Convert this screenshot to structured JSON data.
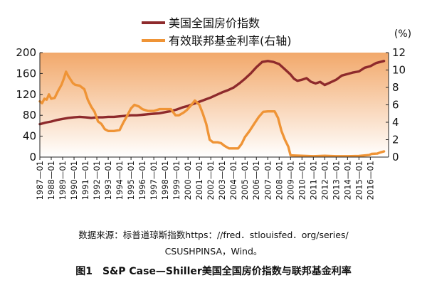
{
  "caption": "图1　S&P Case—Shiller美国全国房价指数与联邦基金利率",
  "source": {
    "line1": "数据来源：标普道琼斯指数https：//fred．stlouisfed．org/series/",
    "line2": "CSUSHPINSA，Wind。"
  },
  "colors": {
    "index": "#8e2a2c",
    "rate": "#ef9436",
    "fill_top": "#f2a86a",
    "fill_bottom": "#ffffff"
  },
  "chart_data": {
    "type": "line",
    "left_axis": {
      "ticks": [
        "0",
        "40",
        "80",
        "120",
        "160",
        "200"
      ],
      "range": [
        0,
        200
      ]
    },
    "right_axis": {
      "unit": "(%)",
      "ticks": [
        "0",
        "2",
        "4",
        "6",
        "8",
        "10",
        "12"
      ],
      "range": [
        0,
        12
      ]
    },
    "x_range": [
      1987.0,
      2017.6
    ],
    "x_ticks": [
      "1987—01",
      "1988—01",
      "1989—01",
      "1990—01",
      "1991—01",
      "1992—01",
      "1993—01",
      "1994—01",
      "1995—01",
      "1996—01",
      "1997—01",
      "1998—01",
      "1999—01",
      "2000—01",
      "2001—01",
      "2002—01",
      "2003—01",
      "2004—01",
      "2005—01",
      "2006—01",
      "2007—01",
      "2008—01",
      "2009—01",
      "2010—01",
      "2011—01",
      "2012—01",
      "2013—01",
      "2014—01",
      "2015—01",
      "2016—01"
    ],
    "grid": false,
    "legend": "top-center",
    "series": [
      {
        "name": "美国全国房价指数",
        "axis": "left",
        "points": [
          [
            1987.0,
            63
          ],
          [
            1987.5,
            66
          ],
          [
            1988.0,
            68
          ],
          [
            1988.5,
            71
          ],
          [
            1989.0,
            73
          ],
          [
            1989.5,
            75
          ],
          [
            1990.0,
            76
          ],
          [
            1990.5,
            77
          ],
          [
            1991.0,
            76
          ],
          [
            1991.5,
            75
          ],
          [
            1992.0,
            76
          ],
          [
            1992.5,
            76
          ],
          [
            1993.0,
            77
          ],
          [
            1993.5,
            77
          ],
          [
            1994.0,
            78
          ],
          [
            1994.5,
            79
          ],
          [
            1995.0,
            80
          ],
          [
            1995.5,
            80
          ],
          [
            1996.0,
            81
          ],
          [
            1996.5,
            82
          ],
          [
            1997.0,
            83
          ],
          [
            1997.5,
            84
          ],
          [
            1998.0,
            86
          ],
          [
            1998.5,
            88
          ],
          [
            1999.0,
            91
          ],
          [
            1999.5,
            95
          ],
          [
            2000.0,
            98
          ],
          [
            2000.5,
            102
          ],
          [
            2001.0,
            106
          ],
          [
            2001.5,
            110
          ],
          [
            2002.0,
            114
          ],
          [
            2002.5,
            119
          ],
          [
            2003.0,
            124
          ],
          [
            2003.5,
            128
          ],
          [
            2004.0,
            133
          ],
          [
            2004.5,
            141
          ],
          [
            2005.0,
            150
          ],
          [
            2005.5,
            160
          ],
          [
            2006.0,
            172
          ],
          [
            2006.5,
            182
          ],
          [
            2007.0,
            184
          ],
          [
            2007.5,
            182
          ],
          [
            2008.0,
            178
          ],
          [
            2008.5,
            168
          ],
          [
            2009.0,
            158
          ],
          [
            2009.3,
            150
          ],
          [
            2009.6,
            146
          ],
          [
            2010.0,
            148
          ],
          [
            2010.4,
            151
          ],
          [
            2010.8,
            144
          ],
          [
            2011.2,
            141
          ],
          [
            2011.6,
            144
          ],
          [
            2012.0,
            138
          ],
          [
            2012.5,
            143
          ],
          [
            2013.0,
            148
          ],
          [
            2013.5,
            156
          ],
          [
            2014.0,
            159
          ],
          [
            2014.5,
            162
          ],
          [
            2015.0,
            164
          ],
          [
            2015.5,
            171
          ],
          [
            2016.0,
            174
          ],
          [
            2016.5,
            180
          ],
          [
            2017.2,
            184
          ]
        ]
      },
      {
        "name": "有效联邦基金利率(右轴)",
        "axis": "right",
        "points": [
          [
            1987.0,
            6.4
          ],
          [
            1987.2,
            6.2
          ],
          [
            1987.4,
            6.7
          ],
          [
            1987.6,
            6.6
          ],
          [
            1987.8,
            7.2
          ],
          [
            1988.0,
            6.7
          ],
          [
            1988.3,
            6.8
          ],
          [
            1988.6,
            7.6
          ],
          [
            1988.9,
            8.3
          ],
          [
            1989.1,
            9.0
          ],
          [
            1989.3,
            9.8
          ],
          [
            1989.5,
            9.3
          ],
          [
            1989.7,
            8.9
          ],
          [
            1989.9,
            8.5
          ],
          [
            1990.1,
            8.3
          ],
          [
            1990.5,
            8.2
          ],
          [
            1990.9,
            7.8
          ],
          [
            1991.2,
            6.6
          ],
          [
            1991.5,
            5.8
          ],
          [
            1991.8,
            5.2
          ],
          [
            1992.1,
            4.1
          ],
          [
            1992.4,
            3.8
          ],
          [
            1992.7,
            3.2
          ],
          [
            1993.0,
            3.0
          ],
          [
            1993.5,
            3.0
          ],
          [
            1994.0,
            3.1
          ],
          [
            1994.3,
            3.9
          ],
          [
            1994.6,
            4.6
          ],
          [
            1995.0,
            5.6
          ],
          [
            1995.3,
            6.0
          ],
          [
            1995.7,
            5.8
          ],
          [
            1996.0,
            5.5
          ],
          [
            1996.5,
            5.3
          ],
          [
            1997.0,
            5.3
          ],
          [
            1997.5,
            5.5
          ],
          [
            1998.0,
            5.5
          ],
          [
            1998.5,
            5.5
          ],
          [
            1998.9,
            4.8
          ],
          [
            1999.2,
            4.8
          ],
          [
            1999.6,
            5.1
          ],
          [
            1999.9,
            5.4
          ],
          [
            2000.3,
            6.0
          ],
          [
            2000.6,
            6.5
          ],
          [
            2001.0,
            6.0
          ],
          [
            2001.3,
            5.0
          ],
          [
            2001.6,
            3.8
          ],
          [
            2001.9,
            2.0
          ],
          [
            2002.2,
            1.7
          ],
          [
            2002.6,
            1.7
          ],
          [
            2002.9,
            1.6
          ],
          [
            2003.2,
            1.3
          ],
          [
            2003.6,
            1.0
          ],
          [
            2004.0,
            1.0
          ],
          [
            2004.4,
            1.0
          ],
          [
            2004.7,
            1.5
          ],
          [
            2005.0,
            2.3
          ],
          [
            2005.4,
            3.0
          ],
          [
            2005.8,
            3.8
          ],
          [
            2006.2,
            4.6
          ],
          [
            2006.6,
            5.2
          ],
          [
            2007.0,
            5.25
          ],
          [
            2007.6,
            5.25
          ],
          [
            2007.9,
            4.5
          ],
          [
            2008.2,
            3.0
          ],
          [
            2008.5,
            2.0
          ],
          [
            2008.8,
            1.2
          ],
          [
            2009.0,
            0.2
          ],
          [
            2010.0,
            0.15
          ],
          [
            2011.0,
            0.1
          ],
          [
            2012.0,
            0.15
          ],
          [
            2013.0,
            0.1
          ],
          [
            2014.0,
            0.1
          ],
          [
            2015.0,
            0.13
          ],
          [
            2015.9,
            0.24
          ],
          [
            2016.1,
            0.37
          ],
          [
            2016.6,
            0.4
          ],
          [
            2016.9,
            0.55
          ],
          [
            2017.2,
            0.65
          ]
        ]
      }
    ]
  }
}
